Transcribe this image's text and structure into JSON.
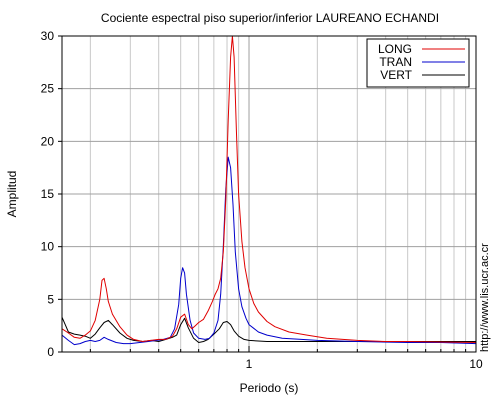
{
  "chart_data": {
    "type": "line",
    "title": "Cociente espectral piso superior/inferior LAUREANO ECHANDI",
    "xlabel": "Periodo (s)",
    "ylabel": "Amplitud",
    "xscale": "log",
    "xlim": [
      0.15,
      10
    ],
    "ylim": [
      0,
      30
    ],
    "x_ticks": [
      {
        "value": 1,
        "label": "1"
      },
      {
        "value": 10,
        "label": "10"
      }
    ],
    "y_ticks": [
      0,
      5,
      10,
      15,
      20,
      25,
      30
    ],
    "grid": true,
    "legend_position": "top-right",
    "credit": "http://www.lis.ucr.ac.cr",
    "series": [
      {
        "name": "LONG",
        "color": "#e00000",
        "points": [
          [
            0.15,
            2.2
          ],
          [
            0.16,
            1.8
          ],
          [
            0.17,
            1.4
          ],
          [
            0.18,
            1.3
          ],
          [
            0.19,
            1.6
          ],
          [
            0.2,
            2.0
          ],
          [
            0.21,
            3.0
          ],
          [
            0.22,
            5.0
          ],
          [
            0.225,
            6.8
          ],
          [
            0.23,
            7.0
          ],
          [
            0.235,
            6.0
          ],
          [
            0.24,
            4.8
          ],
          [
            0.25,
            3.6
          ],
          [
            0.27,
            2.4
          ],
          [
            0.29,
            1.6
          ],
          [
            0.31,
            1.2
          ],
          [
            0.34,
            1.0
          ],
          [
            0.37,
            1.1
          ],
          [
            0.4,
            1.2
          ],
          [
            0.43,
            1.2
          ],
          [
            0.46,
            1.5
          ],
          [
            0.48,
            2.2
          ],
          [
            0.5,
            3.3
          ],
          [
            0.52,
            3.6
          ],
          [
            0.54,
            2.6
          ],
          [
            0.56,
            2.2
          ],
          [
            0.58,
            2.5
          ],
          [
            0.6,
            2.8
          ],
          [
            0.63,
            3.1
          ],
          [
            0.66,
            3.9
          ],
          [
            0.69,
            4.8
          ],
          [
            0.71,
            5.5
          ],
          [
            0.73,
            6.0
          ],
          [
            0.75,
            7.0
          ],
          [
            0.77,
            9.5
          ],
          [
            0.79,
            14.5
          ],
          [
            0.81,
            22.0
          ],
          [
            0.83,
            28.0
          ],
          [
            0.845,
            30.0
          ],
          [
            0.86,
            28.0
          ],
          [
            0.88,
            21.0
          ],
          [
            0.9,
            15.0
          ],
          [
            0.93,
            10.5
          ],
          [
            0.96,
            8.0
          ],
          [
            1.0,
            6.0
          ],
          [
            1.05,
            4.6
          ],
          [
            1.1,
            3.8
          ],
          [
            1.2,
            2.9
          ],
          [
            1.3,
            2.4
          ],
          [
            1.5,
            1.9
          ],
          [
            1.8,
            1.6
          ],
          [
            2.2,
            1.3
          ],
          [
            3.0,
            1.1
          ],
          [
            4.0,
            1.0
          ],
          [
            5.0,
            1.0
          ],
          [
            7.0,
            0.95
          ],
          [
            10.0,
            0.9
          ]
        ]
      },
      {
        "name": "TRAN",
        "color": "#0000cc",
        "points": [
          [
            0.15,
            1.6
          ],
          [
            0.16,
            1.1
          ],
          [
            0.17,
            0.7
          ],
          [
            0.18,
            0.8
          ],
          [
            0.19,
            1.0
          ],
          [
            0.2,
            1.1
          ],
          [
            0.21,
            1.0
          ],
          [
            0.22,
            1.1
          ],
          [
            0.23,
            1.4
          ],
          [
            0.24,
            1.2
          ],
          [
            0.26,
            0.9
          ],
          [
            0.28,
            0.8
          ],
          [
            0.3,
            0.8
          ],
          [
            0.33,
            0.9
          ],
          [
            0.36,
            1.0
          ],
          [
            0.39,
            1.1
          ],
          [
            0.42,
            1.2
          ],
          [
            0.45,
            1.4
          ],
          [
            0.47,
            2.2
          ],
          [
            0.49,
            4.5
          ],
          [
            0.5,
            7.0
          ],
          [
            0.51,
            8.0
          ],
          [
            0.52,
            7.5
          ],
          [
            0.53,
            5.5
          ],
          [
            0.55,
            3.0
          ],
          [
            0.57,
            1.8
          ],
          [
            0.6,
            1.3
          ],
          [
            0.64,
            1.2
          ],
          [
            0.67,
            1.3
          ],
          [
            0.7,
            1.8
          ],
          [
            0.73,
            3.0
          ],
          [
            0.75,
            5.5
          ],
          [
            0.77,
            10.0
          ],
          [
            0.79,
            15.5
          ],
          [
            0.81,
            18.5
          ],
          [
            0.83,
            17.5
          ],
          [
            0.85,
            14.0
          ],
          [
            0.87,
            9.5
          ],
          [
            0.9,
            6.0
          ],
          [
            0.93,
            4.3
          ],
          [
            0.97,
            3.2
          ],
          [
            1.0,
            2.6
          ],
          [
            1.1,
            1.9
          ],
          [
            1.2,
            1.6
          ],
          [
            1.4,
            1.3
          ],
          [
            1.7,
            1.2
          ],
          [
            2.0,
            1.1
          ],
          [
            3.0,
            1.0
          ],
          [
            5.0,
            0.9
          ],
          [
            7.0,
            0.9
          ],
          [
            10.0,
            0.8
          ]
        ]
      },
      {
        "name": "VERT",
        "color": "#000000",
        "points": [
          [
            0.15,
            3.3
          ],
          [
            0.155,
            2.6
          ],
          [
            0.16,
            1.9
          ],
          [
            0.17,
            1.7
          ],
          [
            0.18,
            1.6
          ],
          [
            0.19,
            1.5
          ],
          [
            0.2,
            1.3
          ],
          [
            0.21,
            1.7
          ],
          [
            0.22,
            2.3
          ],
          [
            0.23,
            2.8
          ],
          [
            0.24,
            3.0
          ],
          [
            0.25,
            2.6
          ],
          [
            0.27,
            1.8
          ],
          [
            0.29,
            1.3
          ],
          [
            0.31,
            1.1
          ],
          [
            0.34,
            1.0
          ],
          [
            0.37,
            1.1
          ],
          [
            0.4,
            1.0
          ],
          [
            0.43,
            1.2
          ],
          [
            0.46,
            1.4
          ],
          [
            0.48,
            1.6
          ],
          [
            0.5,
            2.6
          ],
          [
            0.52,
            3.2
          ],
          [
            0.54,
            2.3
          ],
          [
            0.57,
            1.3
          ],
          [
            0.6,
            0.9
          ],
          [
            0.63,
            1.0
          ],
          [
            0.66,
            1.2
          ],
          [
            0.7,
            1.7
          ],
          [
            0.74,
            2.2
          ],
          [
            0.77,
            2.8
          ],
          [
            0.8,
            2.9
          ],
          [
            0.83,
            2.6
          ],
          [
            0.86,
            2.0
          ],
          [
            0.9,
            1.5
          ],
          [
            0.95,
            1.2
          ],
          [
            1.0,
            1.1
          ],
          [
            1.2,
            1.0
          ],
          [
            1.5,
            1.0
          ],
          [
            2.0,
            1.0
          ],
          [
            3.0,
            1.0
          ],
          [
            5.0,
            1.0
          ],
          [
            7.0,
            1.0
          ],
          [
            10.0,
            1.0
          ]
        ]
      }
    ]
  }
}
